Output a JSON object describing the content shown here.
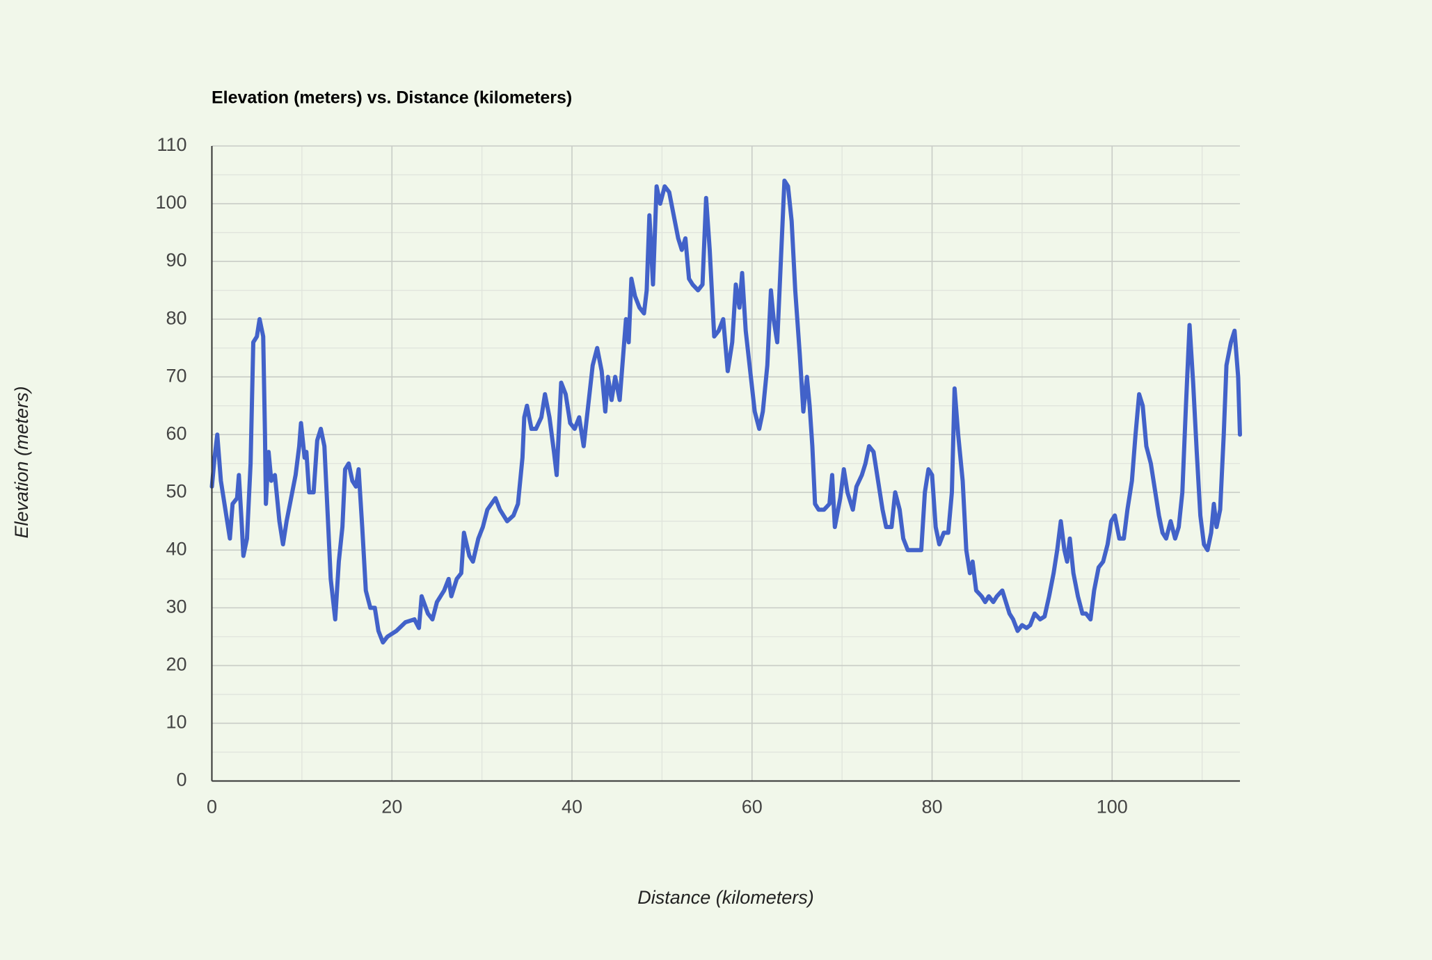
{
  "chart_data": {
    "type": "line",
    "title": "Elevation (meters) vs. Distance (kilometers)",
    "x_label": "Distance (kilometers)",
    "y_label": "Elevation (meters)",
    "color": "#4262c9",
    "grid": true,
    "xlim": [
      0,
      114.2
    ],
    "ylim": [
      0,
      110
    ],
    "xticks": [
      0,
      20,
      40,
      60,
      80,
      100
    ],
    "x_minor_ticks": [
      10,
      30,
      50,
      70,
      90,
      110
    ],
    "yticks": [
      0,
      10,
      20,
      30,
      40,
      50,
      60,
      70,
      80,
      90,
      100,
      110
    ],
    "y_minor_ticks": [
      5,
      15,
      25,
      35,
      45,
      55,
      65,
      75,
      85,
      95,
      105
    ],
    "x": [
      0,
      0.3,
      0.6,
      1,
      1.5,
      2,
      2.3,
      2.8,
      3,
      3.3,
      3.5,
      3.9,
      4.3,
      4.6,
      5,
      5.3,
      5.7,
      5.9,
      6,
      6.3,
      6.6,
      7,
      7.5,
      7.9,
      8.3,
      8.8,
      9.3,
      9.7,
      9.9,
      10.3,
      10.5,
      10.8,
      11.3,
      11.7,
      12.1,
      12.5,
      12.9,
      13.2,
      13.7,
      14.1,
      14.5,
      14.8,
      15.2,
      15.6,
      16,
      16.3,
      16.7,
      17.1,
      17.6,
      18.1,
      18.5,
      19,
      19.5,
      20.5,
      21.5,
      22.5,
      23,
      23.3,
      24,
      24.5,
      25,
      25.8,
      26.3,
      26.6,
      27.2,
      27.7,
      28,
      28.6,
      29,
      29.6,
      30.1,
      30.6,
      31.5,
      32,
      32.8,
      33.5,
      34,
      34.5,
      34.7,
      35,
      35.5,
      36,
      36.6,
      37,
      37.5,
      38,
      38.3,
      38.8,
      39.3,
      39.8,
      40.3,
      40.8,
      41.3,
      41.8,
      42.3,
      42.8,
      43.3,
      43.7,
      44,
      44.4,
      44.8,
      45.3,
      45.7,
      46,
      46.3,
      46.6,
      47,
      47.5,
      48,
      48.3,
      48.6,
      49,
      49.4,
      49.8,
      50.3,
      50.8,
      51.3,
      51.8,
      52.2,
      52.6,
      53,
      53.4,
      54,
      54.5,
      54.9,
      55.3,
      55.8,
      56.3,
      56.8,
      57.3,
      57.8,
      58.2,
      58.6,
      58.9,
      59.3,
      59.8,
      60.3,
      60.8,
      61.2,
      61.7,
      62.1,
      62.4,
      62.8,
      63.2,
      63.6,
      64,
      64.4,
      64.8,
      65.3,
      65.7,
      66.1,
      66.4,
      66.7,
      67,
      67.4,
      68,
      68.6,
      68.9,
      69.2,
      69.8,
      70.2,
      70.6,
      71.2,
      71.6,
      72.2,
      72.6,
      73,
      73.5,
      74,
      74.5,
      74.9,
      75.5,
      75.9,
      76.4,
      76.8,
      77.3,
      78.2,
      78.8,
      79.2,
      79.6,
      80,
      80.4,
      80.8,
      81.3,
      81.8,
      82.2,
      82.5,
      82.9,
      83.4,
      83.8,
      84.2,
      84.5,
      84.9,
      85.5,
      85.9,
      86.3,
      86.8,
      87.2,
      87.8,
      88.2,
      88.6,
      89,
      89.5,
      90,
      90.5,
      90.9,
      91.4,
      92,
      92.5,
      93,
      93.5,
      93.9,
      94.3,
      94.7,
      95,
      95.3,
      95.7,
      96.2,
      96.7,
      97.1,
      97.6,
      98,
      98.5,
      99,
      99.5,
      99.9,
      100.3,
      100.8,
      101.3,
      101.7,
      102.2,
      102.6,
      103,
      103.4,
      103.8,
      104.3,
      104.8,
      105.2,
      105.6,
      106,
      106.5,
      107,
      107.4,
      107.8,
      108.2,
      108.6,
      109,
      109.4,
      109.8,
      110.2,
      110.6,
      111,
      111.3,
      111.6,
      112,
      112.4,
      112.7,
      113.2,
      113.6,
      114,
      114.2
    ],
    "values": [
      51,
      56,
      60,
      52,
      47,
      42,
      48,
      49,
      53,
      45,
      39,
      42,
      55,
      76,
      77,
      80,
      77,
      60,
      48,
      57,
      52,
      53,
      45,
      41,
      45,
      49,
      53,
      58,
      62,
      56,
      57,
      50,
      50,
      59,
      61,
      58,
      45,
      35,
      28,
      38,
      44,
      54,
      55,
      52,
      51,
      54,
      44,
      33,
      30,
      30,
      26,
      24,
      25,
      26,
      27.5,
      28,
      26.5,
      32,
      29,
      28,
      31,
      33,
      35,
      32,
      35,
      36,
      43,
      39,
      38,
      42,
      44,
      47,
      49,
      47,
      45,
      46,
      48,
      56,
      63,
      65,
      61,
      61,
      63,
      67,
      63,
      57,
      53,
      69,
      67,
      62,
      61,
      63,
      58,
      65,
      72,
      75,
      71,
      64,
      70,
      66,
      70,
      66,
      74,
      80,
      76,
      87,
      84,
      82,
      81,
      85,
      98,
      86,
      103,
      100,
      103,
      102,
      98,
      94,
      92,
      94,
      87,
      86,
      85,
      86,
      101,
      92,
      77,
      78,
      80,
      71,
      76,
      86,
      82,
      88,
      78,
      71,
      64,
      61,
      64,
      72,
      85,
      80,
      76,
      90,
      104,
      103,
      97,
      85,
      74,
      64,
      70,
      65,
      58,
      48,
      47,
      47,
      48,
      53,
      44,
      49,
      54,
      50,
      47,
      51,
      53,
      55,
      58,
      57,
      52,
      47,
      44,
      44,
      50,
      47,
      42,
      40,
      40,
      40,
      50,
      54,
      53,
      44,
      41,
      43,
      43,
      50,
      68,
      60,
      52,
      40,
      36,
      38,
      33,
      32,
      31,
      32,
      31,
      32,
      33,
      31,
      29,
      28,
      26,
      27,
      26.5,
      27,
      29,
      28,
      28.5,
      32,
      36,
      40,
      45,
      40,
      38,
      42,
      36,
      32,
      29,
      29,
      28,
      33,
      37,
      38,
      41,
      45,
      46,
      42,
      42,
      47,
      52,
      60,
      67,
      65,
      58,
      55,
      50,
      46,
      43,
      42,
      45,
      42,
      44,
      50,
      65,
      79,
      69,
      57,
      46,
      41,
      40,
      43,
      48,
      44,
      47,
      60,
      72,
      76,
      78,
      70,
      60
    ]
  }
}
